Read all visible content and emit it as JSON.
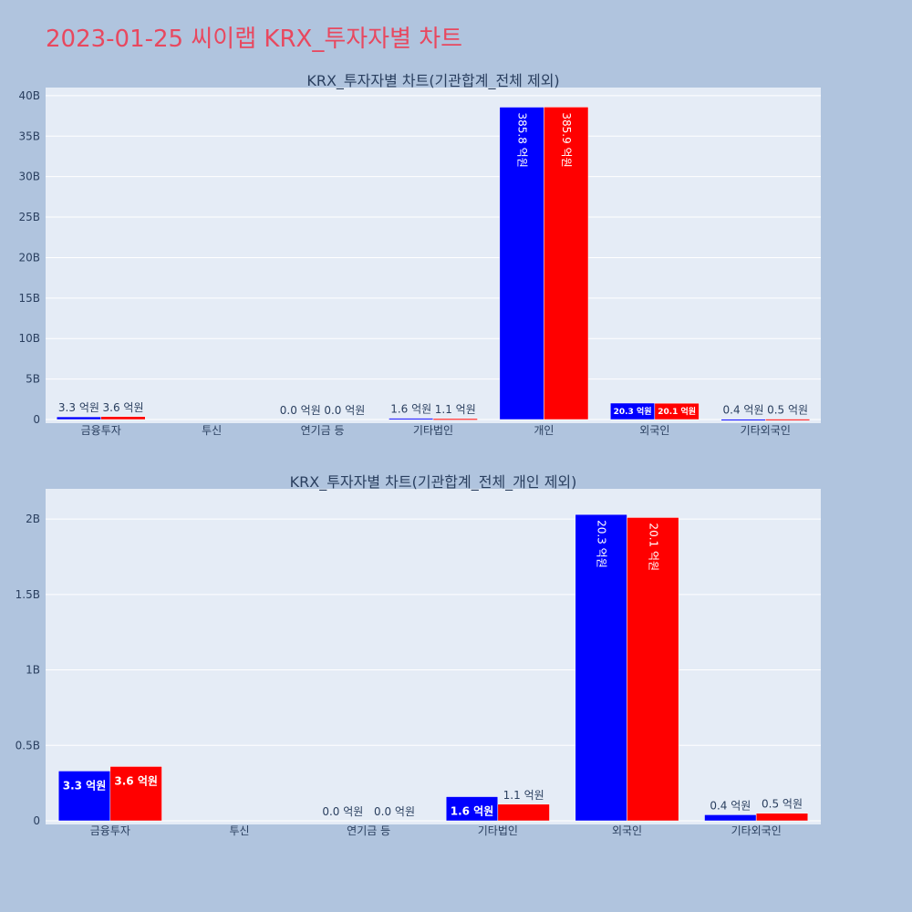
{
  "page": {
    "title": "2023-01-25 씨이랩 KRX_투자자별 차트",
    "title_color": "#e8485f",
    "background": "#b0c4de",
    "plot_background": "#e5ecf6"
  },
  "chart_data": [
    {
      "type": "bar",
      "title": "KRX_투자자별 차트(기관합계_전체 제외)",
      "categories": [
        "금융투자",
        "투신",
        "연기금 등",
        "기타법인",
        "개인",
        "외국인",
        "기타외국인"
      ],
      "series": [
        {
          "color": "#0000ff",
          "values": [
            330000000,
            0,
            0,
            160000000,
            38580000000,
            2030000000,
            40000000
          ],
          "labels": [
            "3.3 억원",
            "",
            "0.0 억원",
            "1.6 억원",
            "385.8 억원",
            "20.3 억원",
            "0.4 억원"
          ]
        },
        {
          "color": "#ff0000",
          "values": [
            360000000,
            0,
            0,
            110000000,
            38590000000,
            2010000000,
            50000000
          ],
          "labels": [
            "3.6 억원",
            "",
            "0.0 억원",
            "1.1 억원",
            "385.9 억원",
            "20.1 억원",
            "0.5 억원"
          ]
        }
      ],
      "ylim": [
        0,
        41000000000
      ],
      "yticks": [
        0,
        5000000000,
        10000000000,
        15000000000,
        20000000000,
        25000000000,
        30000000000,
        35000000000,
        40000000000
      ],
      "ytick_labels": [
        "0",
        "5B",
        "10B",
        "15B",
        "20B",
        "25B",
        "30B",
        "35B",
        "40B"
      ],
      "grid": true,
      "legend": "none"
    },
    {
      "type": "bar",
      "title": "KRX_투자자별 차트(기관합계_전체_개인 제외)",
      "categories": [
        "금융투자",
        "투신",
        "연기금 등",
        "기타법인",
        "외국인",
        "기타외국인"
      ],
      "series": [
        {
          "color": "#0000ff",
          "values": [
            330000000,
            0,
            0,
            160000000,
            2030000000,
            40000000
          ],
          "labels": [
            "3.3 억원",
            "",
            "0.0 억원",
            "1.6 억원",
            "20.3 억원",
            "0.4 억원"
          ]
        },
        {
          "color": "#ff0000",
          "values": [
            360000000,
            0,
            0,
            110000000,
            2010000000,
            50000000
          ],
          "labels": [
            "3.6 억원",
            "",
            "0.0 억원",
            "1.1 억원",
            "20.1 억원",
            "0.5 억원"
          ]
        }
      ],
      "ylim": [
        0,
        2200000000
      ],
      "yticks": [
        0,
        500000000,
        1000000000,
        1500000000,
        2000000000
      ],
      "ytick_labels": [
        "0",
        "0.5B",
        "1B",
        "1.5B",
        "2B"
      ],
      "grid": true,
      "legend": "none"
    }
  ]
}
